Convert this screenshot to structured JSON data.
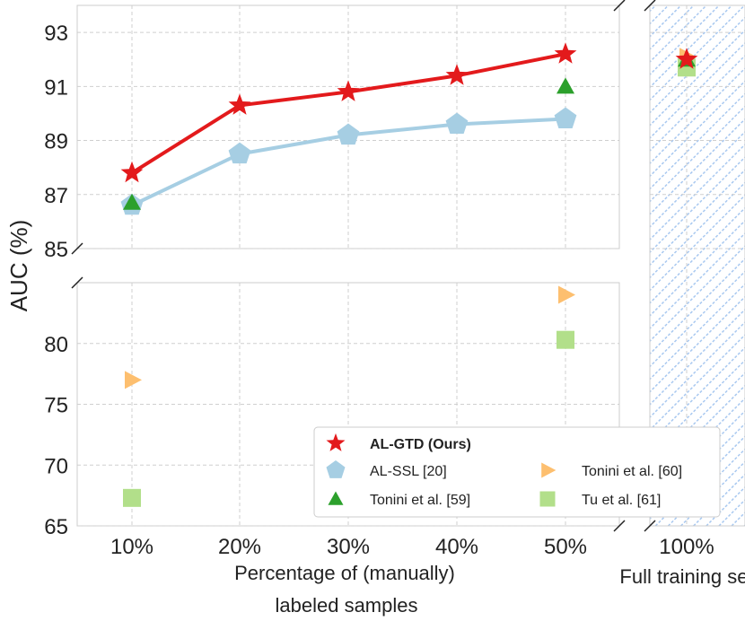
{
  "chart_data": {
    "type": "scatter-line",
    "ylabel": "AUC (%)",
    "xlabel": "Percentage of (manually) labeled samples",
    "extra_xlabel": "Full training set",
    "categories": [
      "10%",
      "20%",
      "30%",
      "40%",
      "50%"
    ],
    "extra_category": "100%",
    "y_upper_ticks": [
      85,
      87,
      89,
      91,
      93
    ],
    "y_lower_ticks": [
      65,
      70,
      75,
      80
    ],
    "y_upper_range": [
      85,
      94
    ],
    "y_lower_range": [
      65,
      85
    ],
    "series": [
      {
        "name": "AL-GTD (Ours)",
        "marker": "star",
        "color": "#e31a1c",
        "line": true,
        "bold": true,
        "values": [
          87.8,
          90.3,
          90.8,
          91.4,
          92.2
        ],
        "full": 92.0
      },
      {
        "name": "AL-SSL [20]",
        "marker": "pentagon",
        "color": "#a6cee3",
        "line": true,
        "values": [
          86.6,
          88.5,
          89.2,
          89.6,
          89.8
        ],
        "full": null
      },
      {
        "name": "Tonini et al. [59]",
        "marker": "triangle-up",
        "color": "#2ca02c",
        "line": false,
        "values": [
          86.7,
          null,
          null,
          null,
          91.0
        ],
        "full": 92.0
      },
      {
        "name": "Tonini et al. [60]",
        "marker": "triangle-right",
        "color": "#fdbf6f",
        "line": false,
        "values": [
          77.0,
          null,
          null,
          null,
          84.0
        ],
        "full": 92.1
      },
      {
        "name": "Tu et al. [61]",
        "marker": "square",
        "color": "#b2df8a",
        "line": false,
        "values": [
          67.3,
          null,
          null,
          null,
          80.3
        ],
        "full": 91.7
      }
    ]
  }
}
